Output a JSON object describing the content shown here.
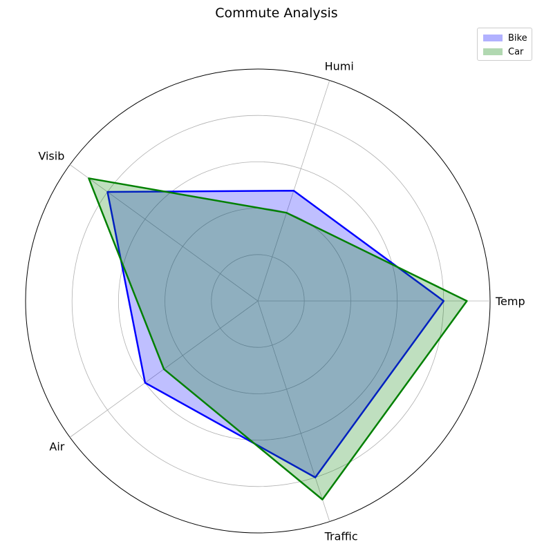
{
  "chart_data": {
    "type": "radar",
    "title": "Commute Analysis",
    "categories": [
      "Temp",
      "Humi",
      "Visib",
      "Air",
      "Traffic"
    ],
    "rmax": 100,
    "rings": [
      20,
      40,
      60,
      80,
      100
    ],
    "grid": true,
    "legend_position": "top-right",
    "series": [
      {
        "name": "Bike",
        "values": [
          80,
          50,
          80,
          60,
          80
        ],
        "color": "#0000ff"
      },
      {
        "name": "Car",
        "values": [
          90,
          40,
          90,
          50,
          90
        ],
        "color": "#008000"
      }
    ]
  }
}
